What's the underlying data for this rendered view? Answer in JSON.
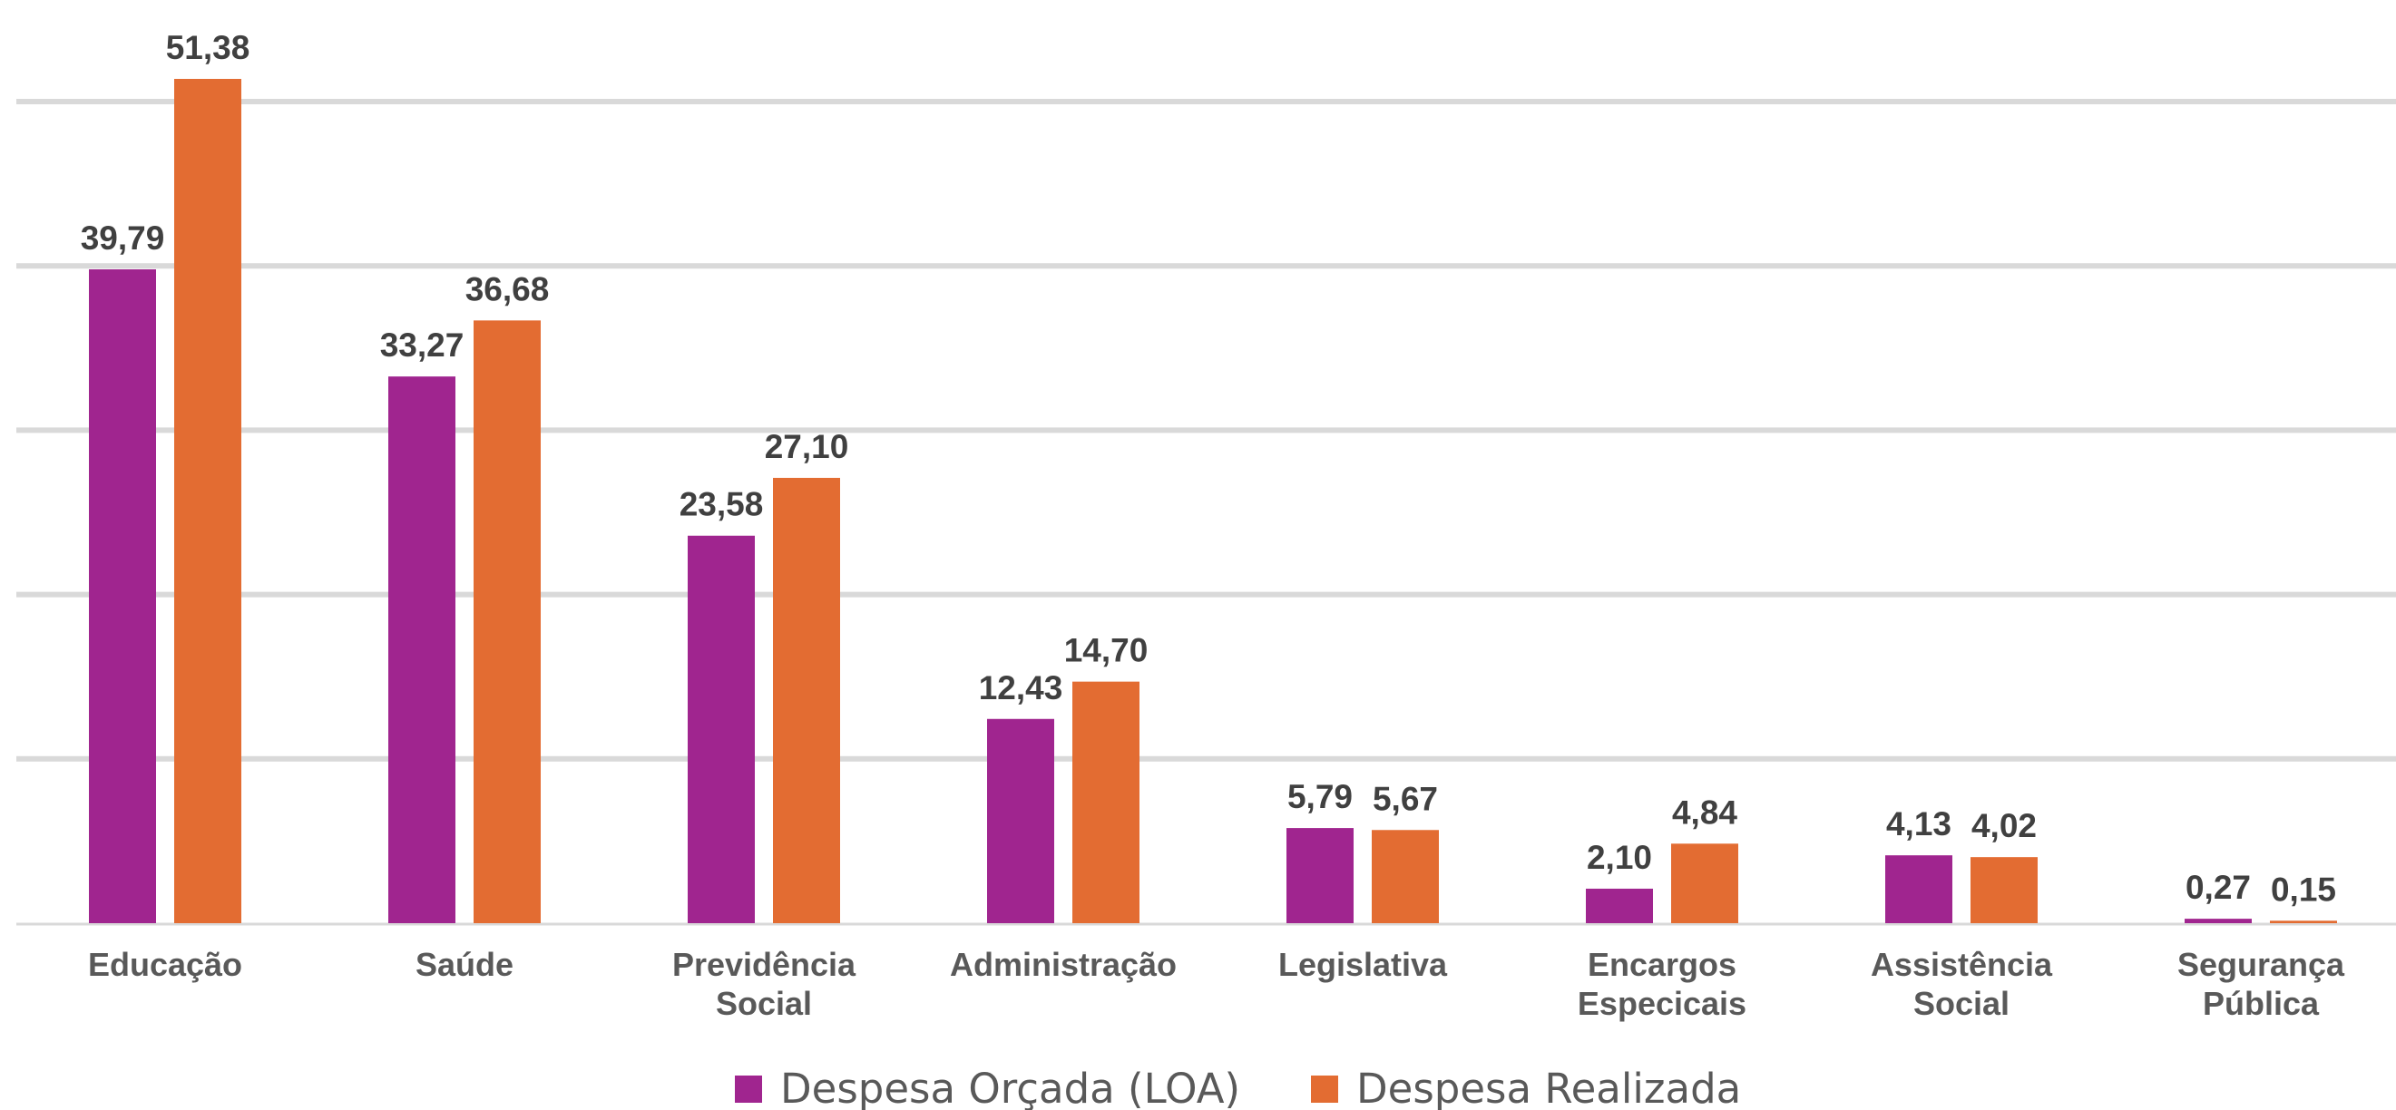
{
  "chart_data": {
    "type": "bar",
    "categories": [
      [
        "Educação"
      ],
      [
        "Saúde"
      ],
      [
        "Previdência",
        "Social"
      ],
      [
        "Administração"
      ],
      [
        "Legislativa"
      ],
      [
        "Encargos",
        "Especicais"
      ],
      [
        "Assistência",
        "Social"
      ],
      [
        "Segurança",
        "Pública"
      ]
    ],
    "series": [
      {
        "name": "Despesa Orçada (LOA)",
        "color": "#A0258F",
        "values": [
          39.79,
          33.27,
          23.58,
          12.43,
          5.79,
          2.1,
          4.13,
          0.27
        ],
        "labels": [
          "39,79",
          "33,27",
          "23,58",
          "12,43",
          "5,79",
          "2,10",
          "4,13",
          "0,27"
        ]
      },
      {
        "name": "Despesa Realizada",
        "color": "#E36C32",
        "values": [
          51.38,
          36.68,
          27.1,
          14.7,
          5.67,
          4.84,
          4.02,
          0.15
        ],
        "labels": [
          "51,38",
          "36,68",
          "27,10",
          "14,70",
          "5,67",
          "4,84",
          "4,02",
          "0,15"
        ]
      }
    ],
    "ylim": [
      0,
      50
    ],
    "grid": true,
    "legend_position": "bottom",
    "gridline_color": "#D9D9D9",
    "axis_color": "#D9D9D9"
  }
}
